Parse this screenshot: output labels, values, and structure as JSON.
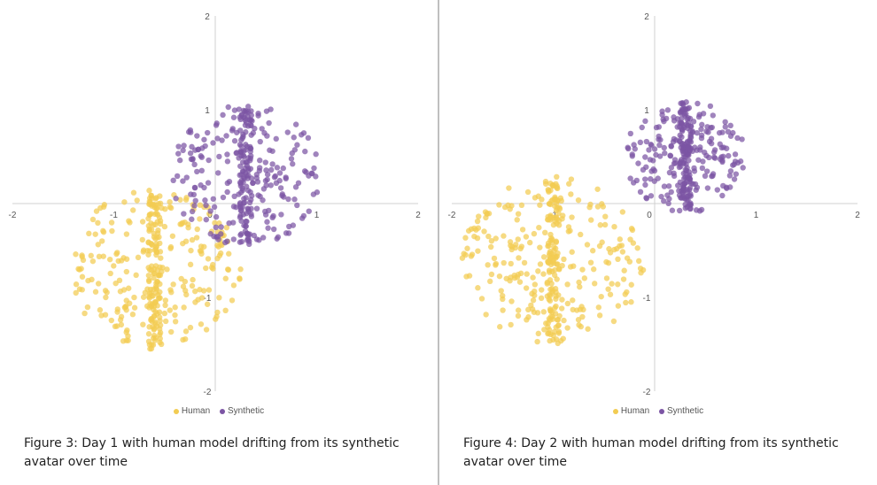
{
  "colors": {
    "human": "#f2cc52",
    "synthetic": "#7c55a4",
    "axis": "#d0d0d0"
  },
  "chart_data": [
    {
      "type": "scatter",
      "title": "",
      "xlabel": "",
      "ylabel": "",
      "xlim": [
        -2,
        2
      ],
      "ylim": [
        -2,
        2
      ],
      "x_ticks": [
        "-2",
        "-1",
        "0",
        "1",
        "2"
      ],
      "y_ticks": [
        "2",
        "1",
        "0",
        "-1",
        "-2"
      ],
      "grid": false,
      "legend": "bottom",
      "series": [
        {
          "name": "Human",
          "cluster": {
            "center": [
              -0.6,
              -0.7
            ],
            "radius": 0.85,
            "stripe_x": -0.6,
            "count": 360
          }
        },
        {
          "name": "Synthetic",
          "cluster": {
            "center": [
              0.3,
              0.3
            ],
            "radius": 0.75,
            "stripe_x": 0.3,
            "count": 320
          }
        }
      ],
      "caption": "Figure 3: Day 1 with human model drifting from its synthetic avatar over time"
    },
    {
      "type": "scatter",
      "title": "",
      "xlabel": "",
      "ylabel": "",
      "xlim": [
        -2,
        2
      ],
      "ylim": [
        -2,
        2
      ],
      "x_ticks": [
        "-2",
        "-1",
        "0",
        "1",
        "2"
      ],
      "y_ticks": [
        "2",
        "1",
        "0",
        "-1",
        "-2"
      ],
      "grid": false,
      "legend": "bottom",
      "series": [
        {
          "name": "Human",
          "cluster": {
            "center": [
              -1.0,
              -0.6
            ],
            "radius": 0.9,
            "stripe_x": -1.0,
            "count": 360
          }
        },
        {
          "name": "Synthetic",
          "cluster": {
            "center": [
              0.3,
              0.5
            ],
            "radius": 0.6,
            "stripe_x": 0.3,
            "count": 320
          }
        }
      ],
      "caption": "Figure 4: Day 2 with human model drifting from its synthetic avatar over time"
    }
  ]
}
